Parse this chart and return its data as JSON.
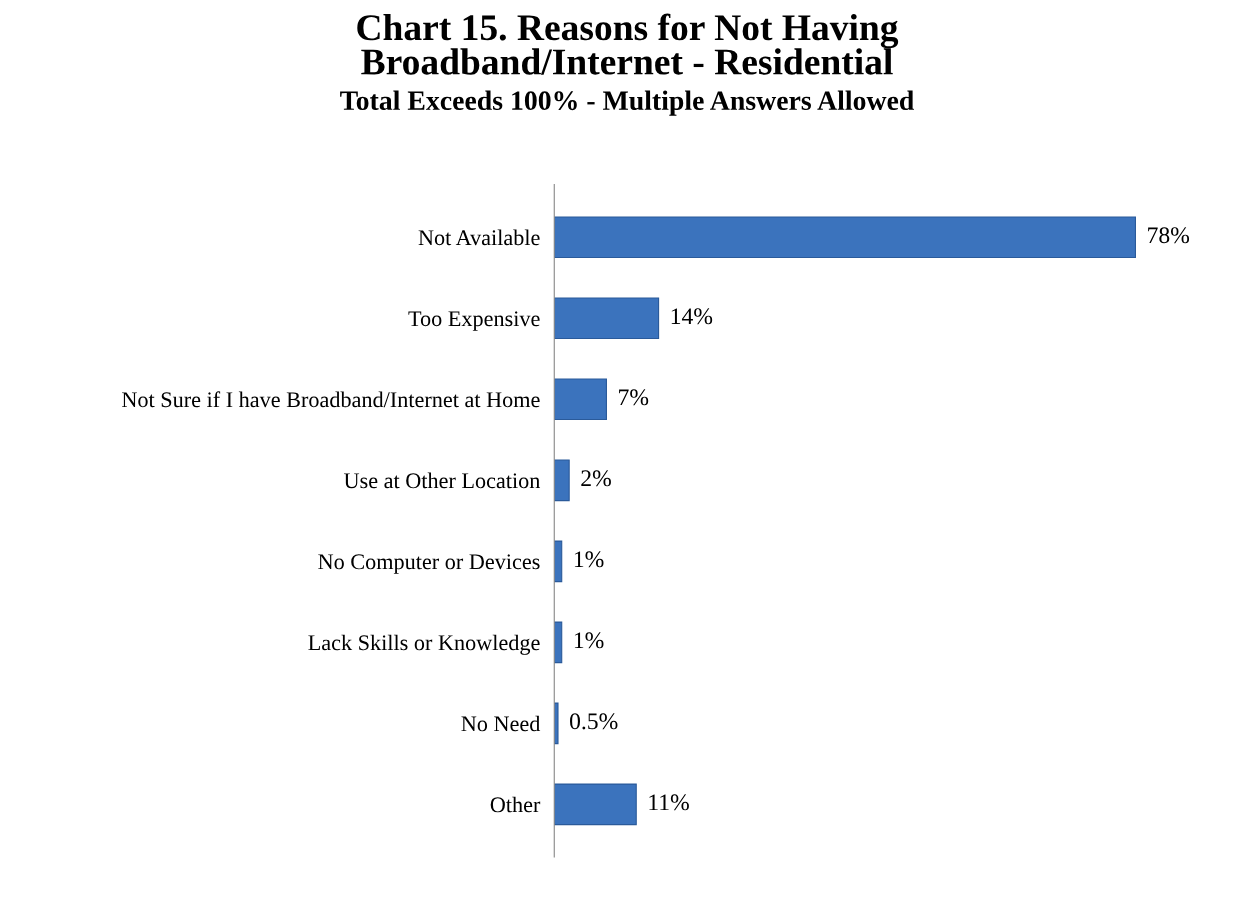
{
  "chart_data": {
    "type": "bar",
    "orientation": "horizontal",
    "title": "Chart 15. Reasons for Not Having\nBroadband/Internet - Residential",
    "subtitle": "Total Exceeds 100% - Multiple Answers Allowed",
    "categories": [
      "Not Available",
      "Too Expensive",
      "Not Sure if I have Broadband/Internet at Home",
      "Use at Other Location",
      "No Computer or Devices",
      "Lack Skills or Knowledge",
      "No Need",
      "Other"
    ],
    "values": [
      78,
      14,
      7,
      2,
      1,
      1,
      0.5,
      11
    ],
    "value_labels": [
      "78%",
      "14%",
      "7%",
      "2%",
      "1%",
      "1%",
      "0.5%",
      "11%"
    ],
    "color": "#3b73bd",
    "grid": false,
    "legend": false
  }
}
